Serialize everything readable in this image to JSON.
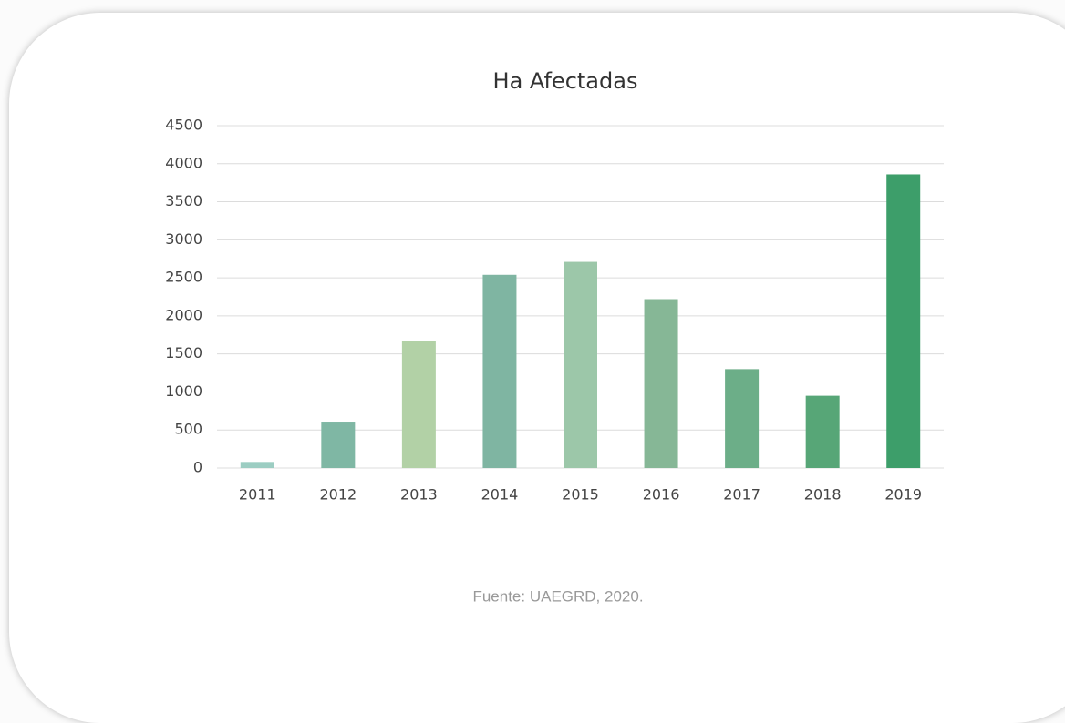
{
  "chart_data": {
    "type": "bar",
    "title": "Ha Afectadas",
    "categories": [
      "2011",
      "2012",
      "2013",
      "2014",
      "2015",
      "2016",
      "2017",
      "2018",
      "2019"
    ],
    "values": [
      80,
      610,
      1670,
      2540,
      2710,
      2220,
      1300,
      950,
      3860
    ],
    "colors": [
      "#9ccdc2",
      "#7fb7a4",
      "#b2d1a6",
      "#7fb5a2",
      "#9cc7a9",
      "#86b796",
      "#6cae88",
      "#57a677",
      "#3d9e6a"
    ],
    "ylim": [
      0,
      4500
    ],
    "yticks": [
      0,
      500,
      1000,
      1500,
      2000,
      2500,
      3000,
      3500,
      4000,
      4500
    ],
    "grid": true,
    "source": "Fuente: UAEGRD, 2020."
  }
}
